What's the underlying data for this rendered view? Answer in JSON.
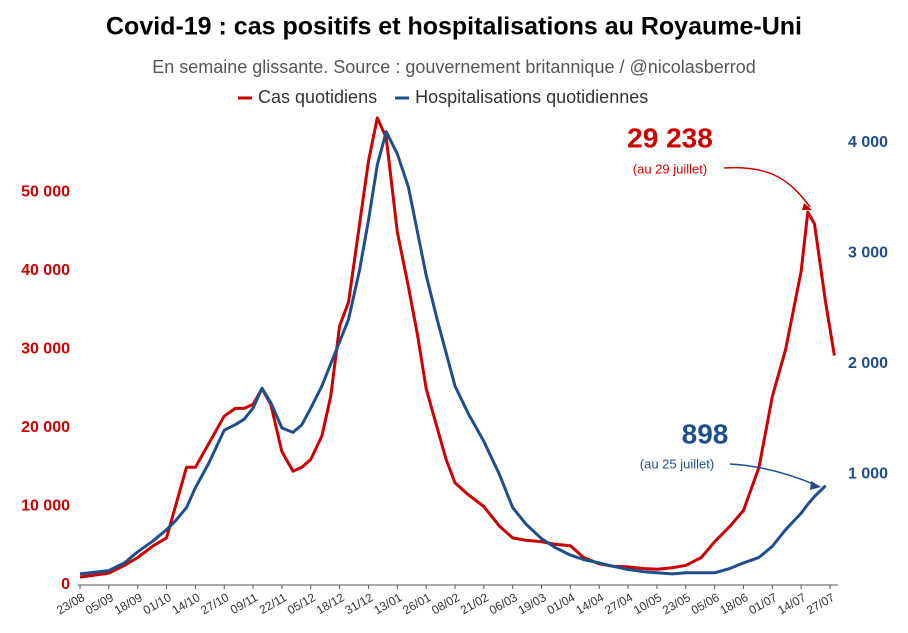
{
  "chart_data": {
    "type": "line",
    "title": "Covid-19 : cas positifs et hospitalisations au Royaume-Uni",
    "subtitle": "En semaine glissante. Source : gouvernement britannique / @nicolasberrod",
    "x": [
      "23/08",
      "05/09",
      "12/09",
      "18/09",
      "25/09",
      "01/10",
      "05/10",
      "10/10",
      "14/10",
      "20/10",
      "27/10",
      "01/11",
      "05/11",
      "09/11",
      "13/11",
      "17/11",
      "22/11",
      "27/11",
      "01/12",
      "05/12",
      "10/12",
      "14/12",
      "18/12",
      "22/12",
      "27/12",
      "31/12",
      "04/01",
      "08/01",
      "13/01",
      "18/01",
      "22/01",
      "26/01",
      "31/01",
      "04/02",
      "08/02",
      "14/02",
      "21/02",
      "28/02",
      "06/03",
      "12/03",
      "19/03",
      "25/03",
      "01/04",
      "07/04",
      "14/04",
      "20/04",
      "27/04",
      "04/05",
      "10/05",
      "17/05",
      "23/05",
      "30/05",
      "05/06",
      "12/06",
      "18/06",
      "25/06",
      "01/07",
      "07/07",
      "14/07",
      "17/07",
      "20/07",
      "25/07",
      "29/07"
    ],
    "series": [
      {
        "name": "Cas quotidiens",
        "color": "#cc0000",
        "values": [
          1000,
          1500,
          2500,
          3500,
          5000,
          6000,
          10000,
          15000,
          15000,
          18000,
          21500,
          22500,
          22500,
          23000,
          25000,
          23000,
          17000,
          14500,
          15000,
          16000,
          19000,
          24000,
          33000,
          36000,
          46000,
          54000,
          59500,
          57000,
          45000,
          38000,
          32000,
          25000,
          20000,
          16000,
          13000,
          11500,
          10000,
          7500,
          6000,
          5700,
          5500,
          5200,
          5000,
          3500,
          2700,
          2400,
          2300,
          2100,
          2000,
          2200,
          2500,
          3500,
          5500,
          7500,
          9500,
          15000,
          24000,
          30000,
          40000,
          47500,
          46000,
          36000,
          29238
        ]
      },
      {
        "name": "Hospitalisations quotidiennes",
        "color": "#1f4e8c",
        "axis": "y2",
        "values": [
          100,
          130,
          200,
          300,
          400,
          500,
          580,
          700,
          880,
          1100,
          1400,
          1450,
          1500,
          1600,
          1780,
          1650,
          1420,
          1380,
          1450,
          1600,
          1800,
          2000,
          2200,
          2400,
          2850,
          3300,
          3800,
          4100,
          3900,
          3600,
          3200,
          2800,
          2400,
          2100,
          1800,
          1550,
          1300,
          1000,
          700,
          550,
          420,
          340,
          270,
          230,
          200,
          170,
          140,
          120,
          110,
          100,
          110,
          110,
          110,
          150,
          200,
          250,
          350,
          500,
          650,
          730,
          800,
          898,
          null
        ]
      }
    ],
    "xticks": [
      "23/08",
      "05/09",
      "18/09",
      "01/10",
      "14/10",
      "27/10",
      "09/11",
      "22/11",
      "05/12",
      "18/12",
      "31/12",
      "13/01",
      "26/01",
      "08/02",
      "21/02",
      "06/03",
      "19/03",
      "01/04",
      "14/04",
      "27/04",
      "10/05",
      "23/05",
      "05/06",
      "18/06",
      "01/07",
      "14/07",
      "27/07"
    ],
    "ylim": [
      0,
      60000
    ],
    "yticks": [
      0,
      {
        "value": 10000,
        "label": "10 000"
      },
      {
        "value": 20000,
        "label": "20 000"
      },
      {
        "value": 30000,
        "label": "30 000"
      },
      {
        "value": 40000,
        "label": "40 000"
      },
      {
        "value": 50000,
        "label": "50 000"
      }
    ],
    "y2lim": [
      0,
      4260
    ],
    "y2ticks": [
      {
        "value": 1000,
        "label": "1 000"
      },
      {
        "value": 2000,
        "label": "2 000"
      },
      {
        "value": 3000,
        "label": "3 000"
      },
      {
        "value": 4000,
        "label": "4 000"
      }
    ],
    "annotations": [
      {
        "text": "29 238",
        "note": "(au 29 juillet)"
      },
      {
        "text": "898",
        "note": "(au 25 juillet)"
      }
    ]
  }
}
